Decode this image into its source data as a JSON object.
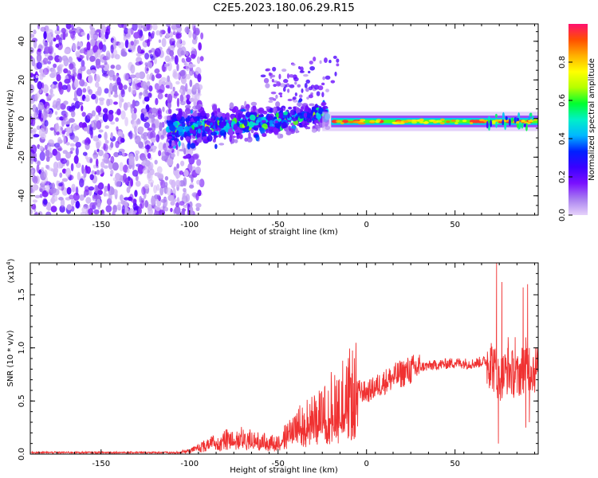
{
  "title": "C2E5.2023.180.06.29.R15",
  "chart_data": [
    {
      "type": "heatmap",
      "title": "C2E5.2023.180.06.29.R15",
      "xlabel": "Height of straight line (km)",
      "ylabel": "Frequency (Hz)",
      "xlim": [
        -190,
        97
      ],
      "ylim": [
        -50,
        49
      ],
      "xticks": [
        -150,
        -100,
        -50,
        0,
        50
      ],
      "yticks": [
        -40,
        -20,
        0,
        20,
        40
      ],
      "xtick_labels": [
        "-150",
        "-100",
        "-50",
        "0",
        "50"
      ],
      "ytick_labels": [
        "-40",
        "-20",
        "0",
        "20",
        "40"
      ],
      "colorbar": {
        "label": "Normalized spectral amplitude",
        "range": [
          0,
          1
        ],
        "ticks": [
          0.0,
          0.2,
          0.4,
          0.6,
          0.8
        ],
        "tick_labels": [
          "0.0",
          "0.2",
          "0.4",
          "0.6",
          "0.8"
        ],
        "colormap": [
          "#e6d2fa",
          "#a87ef0",
          "#7a10ff",
          "#3a00ff",
          "#0020ff",
          "#00b8ff",
          "#00f0c8",
          "#00ff30",
          "#b4ff00",
          "#ffff00",
          "#ffb000",
          "#ff5000",
          "#ff1070"
        ]
      },
      "features": {
        "noise_region_x": [
          -190,
          -103
        ],
        "core_signal_x": [
          -25,
          95
        ],
        "core_frequency_hz": -1.5,
        "core_frequency_hz_note": "",
        "max_amplitude": 1.0
      }
    },
    {
      "type": "line",
      "title": "",
      "xlabel": "Height of straight line (km)",
      "ylabel": "SNR (10 * v/v)",
      "y_multiplier_label": "(x10",
      "y_multiplier_exp": "4",
      "xlim": [
        -190,
        97
      ],
      "ylim": [
        0,
        1.8
      ],
      "xticks": [
        -150,
        -100,
        -50,
        0,
        50
      ],
      "yticks": [
        0.0,
        0.5,
        1.0,
        1.5
      ],
      "xtick_labels": [
        "-150",
        "-100",
        "-50",
        "0",
        "50"
      ],
      "ytick_labels": [
        "0.0",
        "0.5",
        "1.0",
        "1.5"
      ],
      "series": [
        {
          "color": "#f03232",
          "envelope_x": [
            -190,
            -150,
            -110,
            -100,
            -90,
            -80,
            -70,
            -60,
            -50,
            -40,
            -30,
            -20,
            -10,
            -5,
            0,
            10,
            20,
            30,
            40,
            50,
            60,
            65,
            70,
            75,
            80,
            85,
            90,
            95
          ],
          "envelope_y": [
            0.015,
            0.015,
            0.015,
            0.03,
            0.1,
            0.15,
            0.17,
            0.13,
            0.12,
            0.28,
            0.37,
            0.45,
            0.55,
            0.6,
            0.58,
            0.68,
            0.76,
            0.82,
            0.84,
            0.86,
            0.85,
            0.87,
            0.88,
            0.7,
            0.8,
            0.72,
            0.85,
            0.8
          ],
          "spikes": [
            [
              73.5,
              1.8
            ],
            [
              74.5,
              0.1
            ],
            [
              76.5,
              1.62
            ],
            [
              88.5,
              1.57
            ],
            [
              90,
              0.25
            ],
            [
              91,
              1.6
            ],
            [
              92,
              0.3
            ],
            [
              70,
              1.0
            ],
            [
              80,
              1.1
            ],
            [
              82,
              0.6
            ],
            [
              84,
              1.1
            ]
          ]
        }
      ]
    }
  ]
}
